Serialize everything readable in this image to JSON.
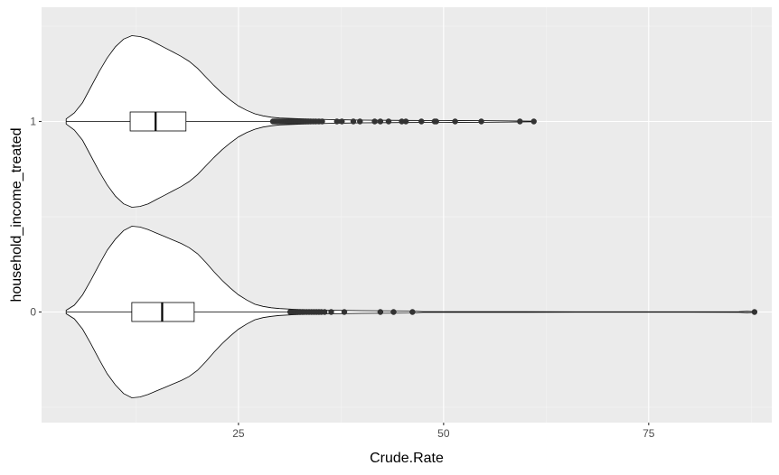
{
  "chart_data": {
    "type": "violin",
    "title": "",
    "xlabel": "Crude.Rate",
    "ylabel": "household_income_treated",
    "xlim": [
      1,
      90
    ],
    "x_ticks": [
      25,
      50,
      75
    ],
    "x_tick_labels": [
      "25",
      "50",
      "75"
    ],
    "categories": [
      "0",
      "1"
    ],
    "grid": true,
    "legend": "none",
    "colors": {
      "panel": "#EBEBEB",
      "grid_major": "#FFFFFF",
      "grid_minor": "#F5F5F5",
      "fill": "#FFFFFF",
      "stroke": "#000000",
      "outlier": "#333333",
      "tick_text": "#4D4D4D"
    },
    "groups": [
      {
        "category": "0",
        "box": {
          "whisker_low": 4.0,
          "q1": 12.0,
          "median": 15.7,
          "q3": 19.6,
          "whisker_high": 31.2
        },
        "density_extent": [
          4.0,
          88.0
        ],
        "density": [
          [
            4.0,
            0.02
          ],
          [
            5.0,
            0.08
          ],
          [
            6.0,
            0.2
          ],
          [
            7.0,
            0.37
          ],
          [
            8.0,
            0.55
          ],
          [
            9.0,
            0.72
          ],
          [
            10.0,
            0.85
          ],
          [
            11.0,
            0.95
          ],
          [
            12.0,
            1.0
          ],
          [
            13.0,
            0.99
          ],
          [
            14.0,
            0.96
          ],
          [
            15.0,
            0.92
          ],
          [
            16.0,
            0.88
          ],
          [
            17.0,
            0.84
          ],
          [
            18.0,
            0.8
          ],
          [
            19.0,
            0.75
          ],
          [
            20.0,
            0.68
          ],
          [
            21.0,
            0.58
          ],
          [
            22.0,
            0.47
          ],
          [
            23.0,
            0.37
          ],
          [
            24.0,
            0.28
          ],
          [
            25.0,
            0.2
          ],
          [
            26.0,
            0.14
          ],
          [
            27.0,
            0.09
          ],
          [
            28.0,
            0.065
          ],
          [
            29.0,
            0.05
          ],
          [
            30.0,
            0.04
          ],
          [
            32.0,
            0.03
          ],
          [
            35.0,
            0.022
          ],
          [
            40.0,
            0.016
          ],
          [
            46.0,
            0.012
          ],
          [
            47.5,
            0.004
          ],
          [
            60.0,
            0.003
          ],
          [
            75.0,
            0.002
          ],
          [
            86.0,
            0.003
          ],
          [
            87.0,
            0.008
          ],
          [
            88.0,
            0.003
          ]
        ],
        "outliers": [
          31.3,
          31.5,
          31.7,
          31.9,
          32.0,
          32.2,
          32.5,
          32.8,
          33.0,
          33.3,
          33.6,
          33.9,
          34.2,
          34.5,
          34.8,
          35.1,
          35.5,
          36.3,
          37.9,
          42.3,
          43.9,
          46.2,
          87.9
        ]
      },
      {
        "category": "1",
        "box": {
          "whisker_low": 4.0,
          "q1": 11.8,
          "median": 14.9,
          "q3": 18.6,
          "whisker_high": 29.0
        },
        "density_extent": [
          4.0,
          61.0
        ],
        "density": [
          [
            4.0,
            0.03
          ],
          [
            5.0,
            0.1
          ],
          [
            6.0,
            0.22
          ],
          [
            7.0,
            0.4
          ],
          [
            8.0,
            0.58
          ],
          [
            9.0,
            0.74
          ],
          [
            10.0,
            0.87
          ],
          [
            11.0,
            0.96
          ],
          [
            12.0,
            1.0
          ],
          [
            13.0,
            0.99
          ],
          [
            14.0,
            0.96
          ],
          [
            15.0,
            0.91
          ],
          [
            16.0,
            0.86
          ],
          [
            17.0,
            0.81
          ],
          [
            18.0,
            0.76
          ],
          [
            19.0,
            0.7
          ],
          [
            20.0,
            0.62
          ],
          [
            21.0,
            0.52
          ],
          [
            22.0,
            0.42
          ],
          [
            23.0,
            0.33
          ],
          [
            24.0,
            0.25
          ],
          [
            25.0,
            0.18
          ],
          [
            26.0,
            0.13
          ],
          [
            27.0,
            0.09
          ],
          [
            28.0,
            0.065
          ],
          [
            29.0,
            0.05
          ],
          [
            30.0,
            0.04
          ],
          [
            33.0,
            0.03
          ],
          [
            36.0,
            0.022
          ],
          [
            40.0,
            0.016
          ],
          [
            45.0,
            0.013
          ],
          [
            50.0,
            0.011
          ],
          [
            55.0,
            0.01
          ],
          [
            58.0,
            0.006
          ],
          [
            61.0,
            0.003
          ]
        ],
        "outliers": [
          29.2,
          29.4,
          29.6,
          29.8,
          30.0,
          30.2,
          30.4,
          30.6,
          30.8,
          31.0,
          31.2,
          31.4,
          31.6,
          31.8,
          32.0,
          32.3,
          32.6,
          32.9,
          33.2,
          33.5,
          33.8,
          34.1,
          34.4,
          34.8,
          35.2,
          37.0,
          37.6,
          39.0,
          39.8,
          41.6,
          42.3,
          43.3,
          44.9,
          45.4,
          47.3,
          48.9,
          49.1,
          51.4,
          54.6,
          59.3,
          61.0
        ]
      }
    ]
  }
}
